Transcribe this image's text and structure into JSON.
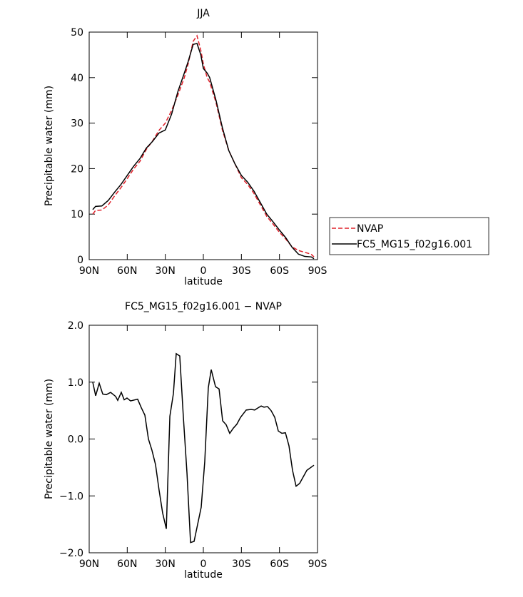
{
  "chart_data": [
    {
      "type": "line",
      "title": "JJA",
      "xlabel": "latitude",
      "ylabel": "Precipitable water (mm)",
      "xlim": [
        90,
        -90
      ],
      "ylim": [
        0,
        50
      ],
      "xticks": [
        {
          "value": 90,
          "label": "90N"
        },
        {
          "value": 60,
          "label": "60N"
        },
        {
          "value": 30,
          "label": "30N"
        },
        0,
        {
          "value": -30,
          "label": "30S"
        },
        {
          "value": -60,
          "label": "60S"
        },
        {
          "value": -90,
          "label": "90S"
        }
      ],
      "yticks": [
        0,
        10,
        20,
        30,
        40,
        50
      ],
      "legend": "right",
      "x": [
        87.2,
        85,
        80,
        75,
        70,
        65,
        60,
        55,
        50,
        45,
        40,
        35,
        30,
        25,
        20,
        15,
        12,
        8,
        5,
        2,
        0,
        -3,
        -5,
        -10,
        -15,
        -20,
        -25,
        -30,
        -35,
        -40,
        -45,
        -50,
        -55,
        -60,
        -65,
        -70,
        -75,
        -80,
        -85,
        -87.2
      ],
      "series": [
        {
          "name": "NVAP",
          "color": "#e0202a",
          "style": "dashed",
          "values": [
            10,
            10.8,
            10.9,
            12,
            14,
            15.8,
            17.8,
            19.9,
            21.6,
            24.2,
            26.1,
            28.4,
            30,
            32.8,
            36.2,
            40,
            43,
            48,
            49.2,
            46,
            43,
            40,
            39,
            34.5,
            28.5,
            24,
            21,
            18,
            16.5,
            14.5,
            12,
            9.5,
            7.8,
            6,
            4.5,
            2.8,
            2,
            1.6,
            1.2,
            0.6
          ]
        },
        {
          "name": "FC5_MG15_f02g16.001",
          "color": "#000000",
          "style": "solid",
          "values": [
            11,
            11.7,
            11.8,
            13,
            14.8,
            16.5,
            18.5,
            20.5,
            22.2,
            24.5,
            26,
            27.8,
            28.5,
            32,
            37,
            41,
            43.5,
            47.3,
            47.5,
            45,
            42,
            41,
            40,
            35,
            29,
            24,
            21,
            18.5,
            17,
            15,
            12.5,
            10,
            8.3,
            6.5,
            4.8,
            2.7,
            1.2,
            0.7,
            0.6,
            0.2
          ]
        }
      ]
    },
    {
      "type": "line",
      "title": "FC5_MG15_f02g16.001 − NVAP",
      "xlabel": "latitude",
      "ylabel": "Precipitable water (mm)",
      "xlim": [
        90,
        -90
      ],
      "ylim": [
        -2,
        2
      ],
      "xticks": [
        {
          "value": 90,
          "label": "90N"
        },
        {
          "value": 60,
          "label": "60N"
        },
        {
          "value": 30,
          "label": "30N"
        },
        0,
        {
          "value": -30,
          "label": "30S"
        },
        {
          "value": -60,
          "label": "60S"
        },
        {
          "value": -90,
          "label": "90S"
        }
      ],
      "yticks": [
        {
          "value": -2,
          "label": "−2.0"
        },
        {
          "value": -1,
          "label": "−1.0"
        },
        {
          "value": 0,
          "label": "0.0"
        },
        {
          "value": 1,
          "label": "1.0"
        },
        {
          "value": 2,
          "label": "2.0"
        }
      ],
      "x": [
        87.2,
        84.9,
        82.1,
        79.3,
        76.5,
        73.1,
        69.2,
        67.5,
        64.7,
        62.4,
        60.2,
        57.4,
        51.8,
        48.9,
        46.1,
        43.3,
        40.5,
        37.7,
        34.9,
        32.1,
        29.2,
        26.4,
        23.6,
        21.4,
        18.6,
        15.8,
        12.9,
        10.1,
        7.3,
        1.7,
        -1.1,
        -3.9,
        -6.2,
        -9.6,
        -12.4,
        -15.2,
        -18,
        -20.8,
        -23.6,
        -26.4,
        -29.3,
        -33.8,
        -37.7,
        -40.5,
        -43.3,
        -45.6,
        -47.8,
        -50.6,
        -53.4,
        -56.3,
        -59.1,
        -61.9,
        -64.7,
        -67.5,
        -70.3,
        -73.1,
        -75.9,
        -81.6,
        -87.2
      ],
      "series": [
        {
          "color": "#000000",
          "style": "solid",
          "values": [
            1.0,
            0.76,
            0.98,
            0.79,
            0.78,
            0.82,
            0.75,
            0.68,
            0.82,
            0.69,
            0.72,
            0.67,
            0.7,
            0.55,
            0.42,
            0.0,
            -0.2,
            -0.45,
            -0.9,
            -1.3,
            -1.58,
            0.4,
            0.8,
            1.5,
            1.46,
            0.4,
            -0.6,
            -1.82,
            -1.8,
            -1.2,
            -0.4,
            0.9,
            1.22,
            0.92,
            0.88,
            0.32,
            0.25,
            0.1,
            0.19,
            0.26,
            0.38,
            0.51,
            0.52,
            0.51,
            0.55,
            0.58,
            0.56,
            0.57,
            0.5,
            0.38,
            0.14,
            0.1,
            0.11,
            -0.12,
            -0.55,
            -0.83,
            -0.78,
            -0.55,
            -0.46
          ]
        }
      ]
    }
  ]
}
